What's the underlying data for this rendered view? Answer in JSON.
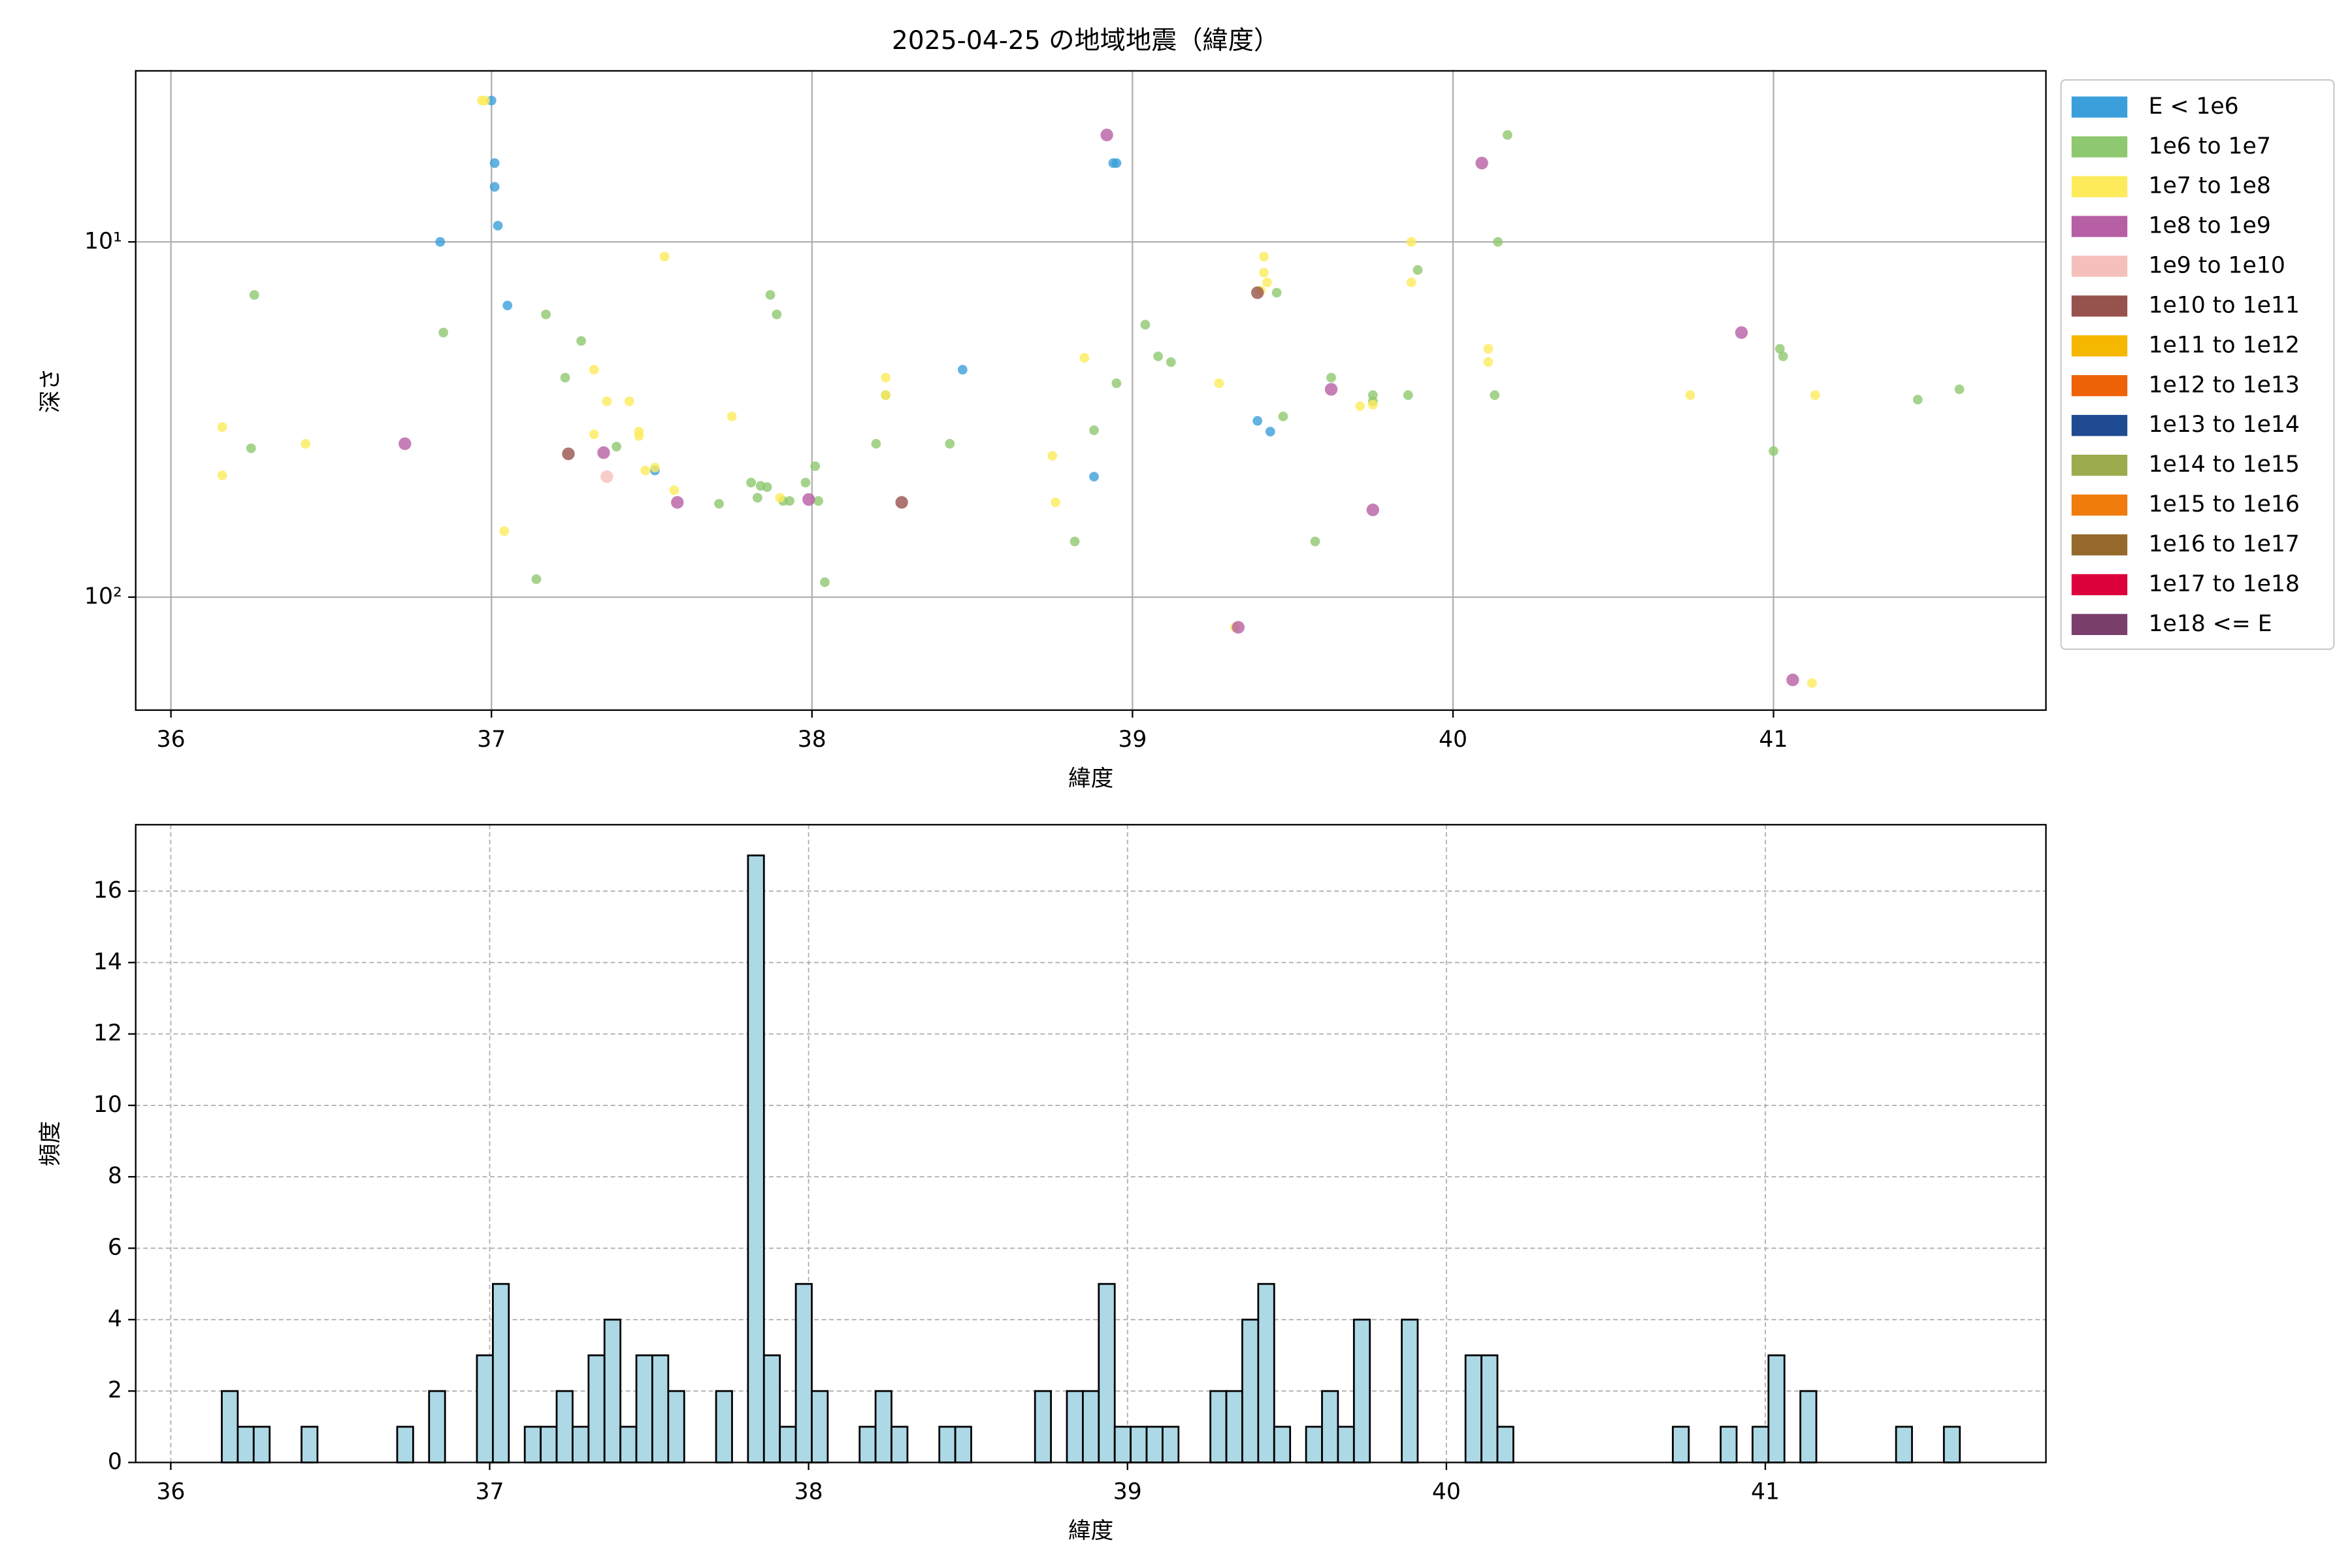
{
  "chart_data": [
    {
      "type": "scatter",
      "title": "2025-04-25 の地域地震（緯度）",
      "x_label": "緯度",
      "y_label": "深さ",
      "xlim": [
        35.89,
        41.85
      ],
      "xticks": [
        36,
        37,
        38,
        39,
        40,
        41
      ],
      "ylim": [
        3.3,
        208
      ],
      "y_scale": "log",
      "y_inverted": true,
      "yticks": [
        {
          "value": 10,
          "label": "10¹"
        },
        {
          "value": 100,
          "label": "10²"
        }
      ],
      "grid": true,
      "grid_style": "solid",
      "legend": "outside-right",
      "series": [
        {
          "name": "E < 1e6",
          "color": "#3b9fdb",
          "x": [
            37.0,
            37.01,
            37.01,
            37.02,
            36.84,
            37.05,
            37.51,
            38.47,
            38.88,
            38.94,
            38.95,
            39.39,
            39.43
          ],
          "values": [
            4.0,
            6.0,
            7.0,
            9.0,
            10.0,
            15.1,
            44.0,
            22.9,
            45.8,
            6.0,
            6.0,
            31.9,
            34.2
          ]
        },
        {
          "name": "1e6 to 1e7",
          "color": "#8ec86f",
          "x": [
            36.26,
            36.25,
            36.85,
            37.17,
            37.28,
            37.23,
            37.39,
            37.14,
            37.87,
            37.89,
            37.81,
            37.83,
            37.84,
            37.86,
            37.98,
            38.01,
            38.02,
            37.91,
            37.93,
            37.71,
            38.04,
            38.23,
            38.2,
            38.43,
            38.88,
            38.82,
            38.95,
            39.04,
            39.08,
            39.12,
            39.45,
            39.47,
            39.57,
            39.62,
            39.75,
            39.75,
            39.86,
            39.89,
            40.14,
            40.17,
            40.13,
            41.02,
            41.03,
            41.0,
            41.45,
            41.58
          ],
          "values": [
            14.1,
            38.1,
            18.0,
            16.0,
            19.0,
            24.1,
            37.7,
            89.0,
            14.1,
            16.0,
            47.6,
            52.5,
            48.6,
            49.0,
            47.6,
            42.8,
            53.6,
            53.6,
            53.6,
            54.6,
            90.8,
            27.0,
            37.0,
            37.0,
            33.9,
            69.7,
            25.0,
            17.1,
            21.0,
            21.8,
            13.9,
            31.0,
            69.7,
            24.1,
            27.0,
            28.1,
            27.0,
            12.0,
            10.0,
            5.0,
            27.0,
            20.0,
            21.0,
            38.8,
            27.8,
            26.0
          ]
        },
        {
          "name": "1e7 to 1e8",
          "color": "#fdeb5b",
          "x": [
            36.16,
            36.16,
            36.42,
            36.97,
            36.98,
            37.04,
            37.32,
            37.32,
            37.36,
            37.43,
            37.46,
            37.46,
            37.48,
            37.51,
            37.57,
            37.54,
            37.75,
            37.9,
            38.23,
            38.23,
            38.75,
            38.76,
            38.85,
            39.27,
            39.32,
            39.41,
            39.41,
            39.42,
            39.4,
            39.71,
            39.75,
            39.87,
            39.87,
            40.11,
            40.11,
            40.74,
            41.13,
            41.12
          ],
          "values": [
            33.2,
            45.4,
            37.0,
            4.0,
            4.0,
            65.2,
            22.9,
            34.8,
            28.1,
            28.1,
            34.2,
            35.2,
            44.0,
            43.2,
            50.0,
            11.0,
            31.0,
            52.5,
            24.1,
            27.0,
            40.0,
            54.1,
            21.2,
            25.0,
            121.6,
            11.0,
            12.2,
            13.0,
            13.7,
            29.0,
            28.7,
            10.0,
            13.0,
            20.0,
            21.8,
            27.0,
            27.0,
            174.6
          ]
        },
        {
          "name": "1e8 to 1e9",
          "color": "#b75fa4",
          "x": [
            36.73,
            37.35,
            37.58,
            37.99,
            38.92,
            39.62,
            39.75,
            40.09,
            40.9,
            41.06,
            39.33
          ],
          "values": [
            37.0,
            39.2,
            54.1,
            53.1,
            5.0,
            26.0,
            56.8,
            6.0,
            18.0,
            171.0,
            121.6
          ]
        },
        {
          "name": "1e9 to 1e10",
          "color": "#f5c0bb",
          "x": [
            37.36
          ],
          "values": [
            45.8
          ]
        },
        {
          "name": "1e10 to 1e11",
          "color": "#97524e",
          "x": [
            37.24,
            38.28,
            39.39
          ],
          "values": [
            39.5,
            54.1,
            13.9
          ]
        },
        {
          "name": "1e11 to 1e12",
          "color": "#f6b700",
          "x": [],
          "values": []
        },
        {
          "name": "1e12 to 1e13",
          "color": "#ee6308",
          "x": [],
          "values": []
        },
        {
          "name": "1e13 to 1e14",
          "color": "#1e4b92",
          "x": [],
          "values": []
        },
        {
          "name": "1e14 to 1e15",
          "color": "#9cab4e",
          "x": [],
          "values": []
        },
        {
          "name": "1e15 to 1e16",
          "color": "#ef7c0c",
          "x": [],
          "values": []
        },
        {
          "name": "1e16 to 1e17",
          "color": "#956a2c",
          "x": [],
          "values": []
        },
        {
          "name": "1e17 to 1e18",
          "color": "#dc003b",
          "x": [],
          "values": []
        },
        {
          "name": "1e18 <= E",
          "color": "#7a3f6c",
          "x": [],
          "values": []
        }
      ]
    },
    {
      "type": "histogram",
      "x_label": "緯度",
      "y_label": "頻度",
      "color": "#add8e6",
      "edge_color": "#000000",
      "xlim": [
        35.89,
        41.88
      ],
      "xticks": [
        36,
        37,
        38,
        39,
        40,
        41
      ],
      "ylim": [
        0,
        17.86
      ],
      "yticks": [
        0,
        2,
        4,
        6,
        8,
        10,
        12,
        14,
        16
      ],
      "grid": true,
      "grid_style": "dashed",
      "bins": [
        36.16,
        36.21,
        36.26,
        36.31,
        36.36,
        36.41,
        36.46,
        36.51,
        36.56,
        36.61,
        36.66,
        36.71,
        36.76,
        36.81,
        36.86,
        36.91,
        36.96,
        37.01,
        37.06,
        37.11,
        37.16,
        37.21,
        37.26,
        37.31,
        37.36,
        37.41,
        37.46,
        37.51,
        37.56,
        37.61,
        37.66,
        37.71,
        37.76,
        37.81,
        37.86,
        37.91,
        37.96,
        38.01,
        38.06,
        38.11,
        38.16,
        38.21,
        38.26,
        38.31,
        38.36,
        38.41,
        38.46,
        38.51,
        38.56,
        38.61,
        38.66,
        38.71,
        38.76,
        38.81,
        38.86,
        38.91,
        38.96,
        39.01,
        39.06,
        39.11,
        39.16,
        39.21,
        39.26,
        39.31,
        39.36,
        39.41,
        39.46,
        39.51,
        39.56,
        39.61,
        39.66,
        39.71,
        39.76,
        39.81,
        39.86,
        39.91,
        39.96,
        40.01,
        40.06,
        40.11,
        40.16,
        40.21,
        40.26,
        40.31,
        40.36,
        40.41,
        40.46,
        40.51,
        40.56,
        40.61,
        40.66,
        40.71,
        40.76,
        40.81,
        40.86,
        40.91,
        40.96,
        41.01,
        41.06,
        41.11,
        41.16,
        41.21,
        41.26,
        41.31,
        41.36,
        41.41,
        41.46,
        41.51,
        41.56,
        41.61
      ],
      "values": [
        2,
        1,
        1,
        0,
        0,
        1,
        0,
        0,
        0,
        0,
        0,
        1,
        0,
        2,
        0,
        0,
        3,
        5,
        0,
        1,
        1,
        2,
        1,
        3,
        4,
        1,
        3,
        3,
        2,
        0,
        0,
        2,
        0,
        17,
        3,
        1,
        5,
        2,
        0,
        0,
        1,
        2,
        1,
        0,
        0,
        1,
        1,
        0,
        0,
        0,
        0,
        2,
        0,
        2,
        2,
        5,
        1,
        1,
        1,
        1,
        0,
        0,
        2,
        2,
        4,
        5,
        1,
        0,
        1,
        2,
        1,
        4,
        0,
        0,
        4,
        0,
        0,
        0,
        3,
        3,
        1,
        0,
        0,
        0,
        0,
        0,
        0,
        0,
        0,
        0,
        0,
        1,
        0,
        0,
        1,
        0,
        1,
        3,
        0,
        2,
        0,
        0,
        0,
        0,
        0,
        1,
        0,
        0,
        1
      ]
    }
  ]
}
